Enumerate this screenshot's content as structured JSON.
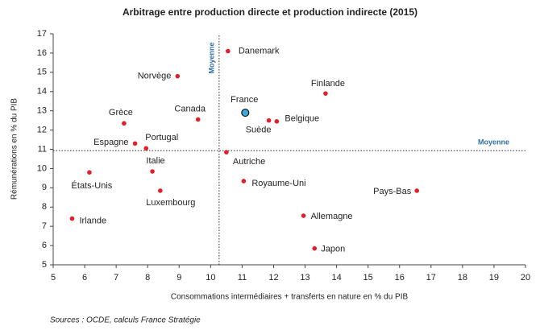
{
  "chart_data": {
    "type": "scatter",
    "title": "Arbitrage entre production directe et production indirecte  (2015)",
    "x_label": "Consommations intermédiaires + transferts en nature en % du PIB",
    "y_label": "Rémunérations en % du PIB",
    "source": "Sources : OCDE, calculs France Stratégie",
    "labels": [
      "Danemark",
      "Norvège",
      "Finlande",
      "Canada",
      "France",
      "Suède",
      "Belgique",
      "Grèce",
      "Espagne",
      "Portugal",
      "Autriche",
      "États-Unis",
      "Italie",
      "Royaume-Uni",
      "Luxembourg",
      "Pays-Bas",
      "Allemagne",
      "Irlande",
      "Japon"
    ],
    "x": [
      10.55,
      8.95,
      13.65,
      9.6,
      11.1,
      11.85,
      12.1,
      7.25,
      7.6,
      7.95,
      10.5,
      6.15,
      8.15,
      11.05,
      8.4,
      16.55,
      12.95,
      5.6,
      13.3
    ],
    "y": [
      16.1,
      14.8,
      13.9,
      12.55,
      12.9,
      12.5,
      12.45,
      12.35,
      11.3,
      11.05,
      10.85,
      9.8,
      9.85,
      9.35,
      8.85,
      8.85,
      7.55,
      7.4,
      5.85
    ],
    "colors": [
      "#e0202a",
      "#e0202a",
      "#e0202a",
      "#e0202a",
      "#3fa9d6",
      "#e0202a",
      "#e0202a",
      "#e0202a",
      "#e0202a",
      "#e0202a",
      "#e0202a",
      "#e0202a",
      "#e0202a",
      "#e0202a",
      "#e0202a",
      "#e0202a",
      "#e0202a",
      "#e0202a",
      "#e0202a"
    ],
    "mean_x": 10.27,
    "mean_y": 10.93,
    "mean_label": "Moyenne",
    "xlim": [
      5,
      20
    ],
    "xticks": [
      5,
      6,
      7,
      8,
      9,
      10,
      11,
      12,
      13,
      14,
      15,
      16,
      17,
      18,
      19,
      20
    ],
    "ylim": [
      5,
      17
    ],
    "yticks": [
      5,
      6,
      7,
      8,
      9,
      10,
      11,
      12,
      13,
      14,
      15,
      16,
      17
    ],
    "grid": false
  }
}
